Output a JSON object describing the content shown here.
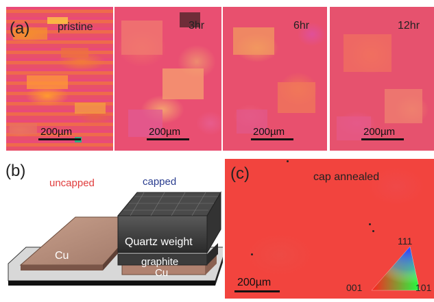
{
  "panel_a": {
    "letter": "(a)",
    "labels": [
      "pristine",
      "3hr",
      "6hr",
      "12hr"
    ],
    "scale": "200µm"
  },
  "panel_b": {
    "letter": "(b)",
    "uncapped": "uncapped",
    "capped": "capped",
    "cu_left": "Cu",
    "quartz": "Quartz weight",
    "graphite": "graphite",
    "cu_right": "Cu",
    "colors": {
      "uncapped": "#e03c3c",
      "capped": "#2a3d8f"
    }
  },
  "panel_c": {
    "letter": "(c)",
    "label": "cap annealed",
    "scale": "200µm",
    "ipf": {
      "top": "111",
      "left": "001",
      "right": "101"
    }
  }
}
